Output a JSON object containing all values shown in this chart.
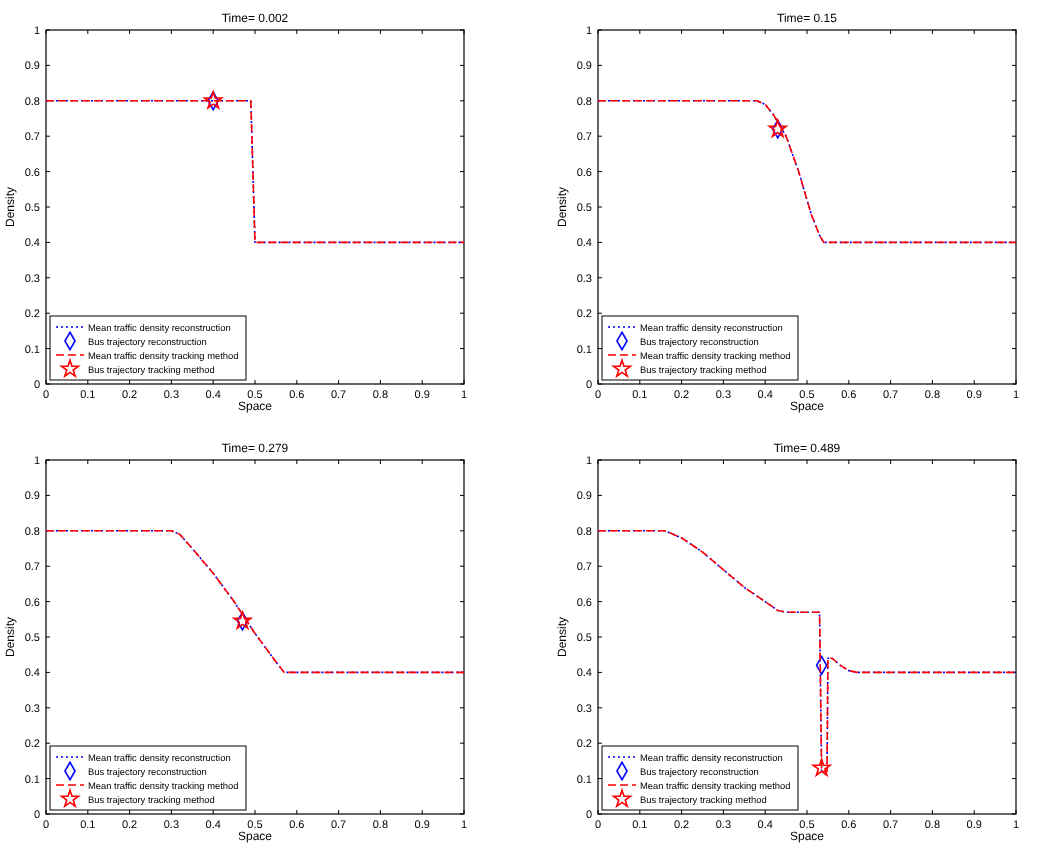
{
  "chart_data": [
    {
      "type": "line",
      "title": "Time= 0.002",
      "xlabel": "Space",
      "ylabel": "Density",
      "xlim": [
        0,
        1
      ],
      "ylim": [
        0,
        1
      ],
      "xticks": [
        0,
        0.1,
        0.2,
        0.3,
        0.4,
        0.5,
        0.6,
        0.7,
        0.8,
        0.9,
        1
      ],
      "yticks": [
        0,
        0.1,
        0.2,
        0.3,
        0.4,
        0.5,
        0.6,
        0.7,
        0.8,
        0.9,
        1
      ],
      "legend": "bottom left",
      "series": [
        {
          "name": "Mean traffic density reconstruction",
          "type": "line",
          "color": "#0000ff",
          "line_style": "dotted",
          "marker": "none",
          "x": [
            0,
            0.49,
            0.5,
            1
          ],
          "values": [
            0.8,
            0.8,
            0.4,
            0.4
          ]
        },
        {
          "name": "Bus trajectory reconstruction",
          "type": "scatter",
          "color": "#0000ff",
          "marker": "diamond",
          "x": [
            0.4
          ],
          "values": [
            0.8
          ]
        },
        {
          "name": "Mean traffic density tracking method",
          "type": "line",
          "color": "#ff0000",
          "line_style": "dashed",
          "marker": "none",
          "x": [
            0,
            0.49,
            0.5,
            1
          ],
          "values": [
            0.8,
            0.8,
            0.4,
            0.4
          ]
        },
        {
          "name": "Bus trajectory tracking method",
          "type": "scatter",
          "color": "#ff0000",
          "marker": "star",
          "x": [
            0.4
          ],
          "values": [
            0.8
          ]
        }
      ]
    },
    {
      "type": "line",
      "title": "Time= 0.15",
      "xlabel": "Space",
      "ylabel": "Density",
      "xlim": [
        0,
        1
      ],
      "ylim": [
        0,
        1
      ],
      "xticks": [
        0,
        0.1,
        0.2,
        0.3,
        0.4,
        0.5,
        0.6,
        0.7,
        0.8,
        0.9,
        1
      ],
      "yticks": [
        0,
        0.1,
        0.2,
        0.3,
        0.4,
        0.5,
        0.6,
        0.7,
        0.8,
        0.9,
        1
      ],
      "legend": "bottom left",
      "series": [
        {
          "name": "Mean traffic density reconstruction",
          "type": "line",
          "color": "#0000ff",
          "line_style": "dotted",
          "marker": "none",
          "x": [
            0,
            0.38,
            0.4,
            0.42,
            0.45,
            0.48,
            0.51,
            0.53,
            0.54,
            1
          ],
          "values": [
            0.8,
            0.8,
            0.79,
            0.76,
            0.7,
            0.6,
            0.48,
            0.42,
            0.4,
            0.4
          ]
        },
        {
          "name": "Bus trajectory reconstruction",
          "type": "scatter",
          "color": "#0000ff",
          "marker": "diamond",
          "x": [
            0.43
          ],
          "values": [
            0.72
          ]
        },
        {
          "name": "Mean traffic density tracking method",
          "type": "line",
          "color": "#ff0000",
          "line_style": "dashed",
          "marker": "none",
          "x": [
            0,
            0.38,
            0.4,
            0.42,
            0.45,
            0.48,
            0.51,
            0.53,
            0.54,
            1
          ],
          "values": [
            0.8,
            0.8,
            0.79,
            0.76,
            0.7,
            0.6,
            0.48,
            0.42,
            0.4,
            0.4
          ]
        },
        {
          "name": "Bus trajectory tracking method",
          "type": "scatter",
          "color": "#ff0000",
          "marker": "star",
          "x": [
            0.43
          ],
          "values": [
            0.72
          ]
        }
      ]
    },
    {
      "type": "line",
      "title": "Time= 0.279",
      "xlabel": "Space",
      "ylabel": "Density",
      "xlim": [
        0,
        1
      ],
      "ylim": [
        0,
        1
      ],
      "xticks": [
        0,
        0.1,
        0.2,
        0.3,
        0.4,
        0.5,
        0.6,
        0.7,
        0.8,
        0.9,
        1
      ],
      "yticks": [
        0,
        0.1,
        0.2,
        0.3,
        0.4,
        0.5,
        0.6,
        0.7,
        0.8,
        0.9,
        1
      ],
      "legend": "bottom left",
      "series": [
        {
          "name": "Mean traffic density reconstruction",
          "type": "line",
          "color": "#0000ff",
          "line_style": "dotted",
          "marker": "none",
          "x": [
            0,
            0.3,
            0.32,
            0.35,
            0.4,
            0.45,
            0.5,
            0.55,
            0.57,
            1
          ],
          "values": [
            0.8,
            0.8,
            0.79,
            0.75,
            0.68,
            0.6,
            0.51,
            0.43,
            0.4,
            0.4
          ]
        },
        {
          "name": "Bus trajectory reconstruction",
          "type": "scatter",
          "color": "#0000ff",
          "marker": "diamond",
          "x": [
            0.47
          ],
          "values": [
            0.545
          ]
        },
        {
          "name": "Mean traffic density tracking method",
          "type": "line",
          "color": "#ff0000",
          "line_style": "dashed",
          "marker": "none",
          "x": [
            0,
            0.3,
            0.32,
            0.35,
            0.4,
            0.45,
            0.5,
            0.55,
            0.57,
            1
          ],
          "values": [
            0.8,
            0.8,
            0.79,
            0.75,
            0.68,
            0.6,
            0.51,
            0.43,
            0.4,
            0.4
          ]
        },
        {
          "name": "Bus trajectory tracking method",
          "type": "scatter",
          "color": "#ff0000",
          "marker": "star",
          "x": [
            0.47
          ],
          "values": [
            0.545
          ]
        }
      ]
    },
    {
      "type": "line",
      "title": "Time= 0.489",
      "xlabel": "Space",
      "ylabel": "Density",
      "xlim": [
        0,
        1
      ],
      "ylim": [
        0,
        1
      ],
      "xticks": [
        0,
        0.1,
        0.2,
        0.3,
        0.4,
        0.5,
        0.6,
        0.7,
        0.8,
        0.9,
        1
      ],
      "yticks": [
        0,
        0.1,
        0.2,
        0.3,
        0.4,
        0.5,
        0.6,
        0.7,
        0.8,
        0.9,
        1
      ],
      "legend": "bottom left",
      "series": [
        {
          "name": "Mean traffic density reconstruction",
          "type": "line",
          "color": "#0000ff",
          "line_style": "dotted",
          "marker": "none",
          "x": [
            0,
            0.16,
            0.2,
            0.25,
            0.3,
            0.35,
            0.4,
            0.43,
            0.45,
            0.53,
            0.535,
            0.548,
            0.55,
            0.56,
            0.58,
            0.6,
            0.62,
            1
          ],
          "values": [
            0.8,
            0.8,
            0.78,
            0.74,
            0.69,
            0.64,
            0.6,
            0.575,
            0.57,
            0.57,
            0.12,
            0.12,
            0.44,
            0.44,
            0.42,
            0.405,
            0.4,
            0.4
          ]
        },
        {
          "name": "Bus trajectory reconstruction",
          "type": "scatter",
          "color": "#0000ff",
          "marker": "diamond",
          "x": [
            0.535
          ],
          "values": [
            0.42
          ]
        },
        {
          "name": "Mean traffic density tracking method",
          "type": "line",
          "color": "#ff0000",
          "line_style": "dashed",
          "marker": "none",
          "x": [
            0,
            0.16,
            0.2,
            0.25,
            0.3,
            0.35,
            0.4,
            0.43,
            0.45,
            0.53,
            0.535,
            0.548,
            0.55,
            0.56,
            0.58,
            0.6,
            0.62,
            1
          ],
          "values": [
            0.8,
            0.8,
            0.78,
            0.74,
            0.69,
            0.64,
            0.6,
            0.575,
            0.57,
            0.57,
            0.12,
            0.12,
            0.44,
            0.44,
            0.42,
            0.405,
            0.4,
            0.4
          ]
        },
        {
          "name": "Bus trajectory tracking method",
          "type": "scatter",
          "color": "#ff0000",
          "marker": "star",
          "x": [
            0.535
          ],
          "values": [
            0.13
          ]
        }
      ]
    }
  ]
}
